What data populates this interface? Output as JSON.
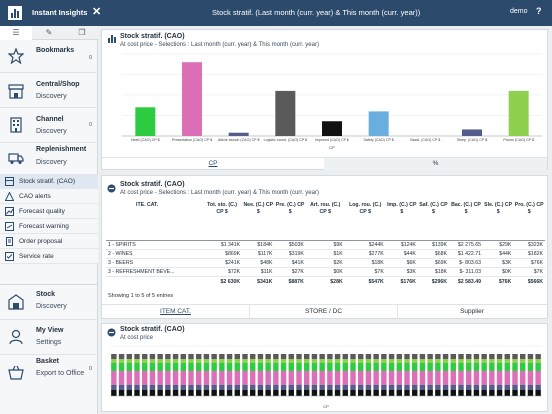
{
  "topbar": {
    "app_title": "Instant Insights",
    "title": "Stock stratif. (Last month (curr. year) & This month (curr. year))",
    "user": "demo",
    "help": "?"
  },
  "sidebar": {
    "tabs": [
      "list-icon",
      "edit-icon",
      "copy-icon"
    ],
    "items": [
      {
        "label": "Bookmarks",
        "sub": "",
        "badge": "0",
        "icon": "star-icon"
      },
      {
        "label": "Central/Shop",
        "sub": "Discovery",
        "icon": "shop-icon"
      },
      {
        "label": "Channel",
        "sub": "Discovery",
        "badge": "0",
        "icon": "building-icon"
      },
      {
        "label": "Replenishment",
        "sub": "Discovery",
        "icon": "truck-icon"
      }
    ],
    "sub_items": [
      {
        "label": "Stock stratif. (CAO)",
        "active": true
      },
      {
        "label": "CAO alerts"
      },
      {
        "label": "Forecast quality"
      },
      {
        "label": "Forecast warning"
      },
      {
        "label": "Order proposal"
      },
      {
        "label": "Service rate"
      }
    ],
    "bottom_items": [
      {
        "label": "Stock",
        "sub": "Discovery",
        "icon": "warehouse-icon"
      },
      {
        "label": "My View",
        "sub": "Settings",
        "icon": "user-icon"
      },
      {
        "label": "Basket",
        "sub": "Export to Office",
        "badge": "0",
        "icon": "basket-icon"
      }
    ]
  },
  "panel1": {
    "title": "Stock stratif. (CAO)",
    "subtitle": "At cost price - Selections : Last month (curr. year) & This month (curr. year)",
    "tabs": [
      "CP",
      "%"
    ]
  },
  "chart_data": [
    {
      "type": "bar",
      "categories": [
        "Need (CAO) CP $",
        "Presentation (CAO) CP $",
        "Article launch (CAO) CP $",
        "Logistic round. (CAO) CP $",
        "Imposed (CAO) CP $",
        "Safety (CAO) CP $",
        "Backl. (CAO) CP $",
        "Sleep. (CAO) CP $",
        "Promo (CAO) CP $"
      ],
      "values": [
        35,
        90,
        4,
        55,
        18,
        30,
        0,
        8,
        55
      ],
      "colors": [
        "#2ecc40",
        "#dd6fb7",
        "#555e88",
        "#5a5a5a",
        "#111111",
        "#6aaee0",
        "#9aa4ae",
        "#545c8c",
        "#8fd14f"
      ],
      "xlabel": "CP",
      "ylabel": "",
      "ylim": [
        0,
        100
      ],
      "grid": true
    },
    {
      "type": "bar",
      "title": "Stock stratif. (CAO)",
      "subtitle": "At cost price",
      "xlabel": "CP",
      "stacked": true,
      "bar_count": 56,
      "segments": [
        {
          "color": "#111111",
          "value": 0.6
        },
        {
          "color": "#555e88",
          "value": 0.5
        },
        {
          "color": "#dd6fb7",
          "value": 1.4
        },
        {
          "color": "#2ecc40",
          "value": 0.8
        },
        {
          "color": "#8fd14f",
          "value": 0.4
        },
        {
          "color": "#5a5a5a",
          "value": 0.5
        }
      ],
      "ylim": [
        0,
        5
      ]
    }
  ],
  "panel2": {
    "title": "Stock stratif. (CAO)",
    "subtitle": "At cost price - Selections : Last month (curr. year) & This month (curr. year)",
    "columns": [
      "ITE. CAT.",
      "Tot. sto. (C.) CP $",
      "Nee. (C.) CP $",
      "Pre. (C.) CP $",
      "Art. rou. (C.) CP $",
      "Log. rou. (C.) CP $",
      "Imp. (C.) CP $",
      "Saf. (C.) CP $",
      "Bac. (C.) CP $",
      "Sle. (C.) CP $",
      "Pro. (C.) CP $"
    ],
    "rows": [
      [
        "1 - SPIRITS",
        "$1 341K",
        "$184K",
        "$503K",
        "$9K",
        "$244K",
        "$124K",
        "$139K",
        "$2 275.65",
        "$29K",
        "$323K"
      ],
      [
        "2 - WINES",
        "$869K",
        "$117K",
        "$319K",
        "$1K",
        "$277K",
        "$44K",
        "$68K",
        "$1 422.71",
        "$44K",
        "$182K"
      ],
      [
        "3 - BEERS",
        "$241K",
        "$48K",
        "$41K",
        "$2K",
        "$18K",
        "$6K",
        "$69K",
        "$- 803.63",
        "$3K",
        "$76K"
      ],
      [
        "3 - REFRESHMENT BEVE...",
        "$72K",
        "$11K",
        "$27K",
        "$0K",
        "$7K",
        "$3K",
        "$18K",
        "$- 311.03",
        "$0K",
        "$7K"
      ]
    ],
    "totals": [
      "",
      "$2 630K",
      "$341K",
      "$887K",
      "$28K",
      "$547K",
      "$176K",
      "$296K",
      "$2 583.49",
      "$76K",
      "$566K"
    ],
    "showing": "Showing 1 to 5 of 5 entries",
    "tabs": [
      "ITEM CAT.",
      "STORE / DC",
      "Supplier"
    ]
  },
  "panel3": {
    "title": "Stock stratif. (CAO)",
    "subtitle": "At cost price"
  }
}
